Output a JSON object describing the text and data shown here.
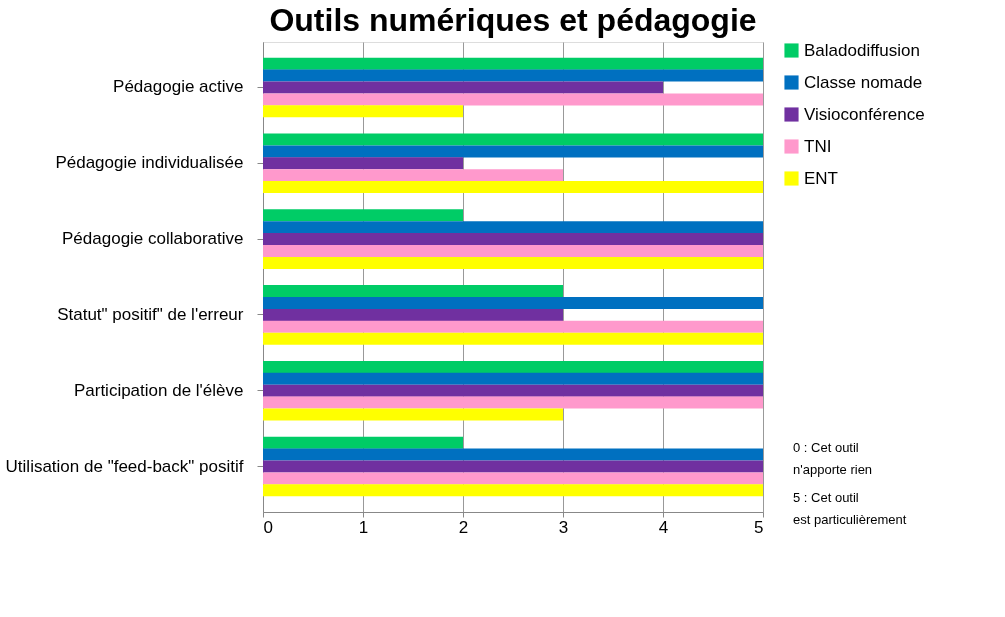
{
  "chart_data": {
    "type": "bar",
    "orientation": "horizontal",
    "title": "Outils numériques et pédagogie",
    "categories": [
      "Pédagogie active",
      "Pédagogie individualisée",
      "Pédagogie collaborative",
      "Statut\" positif\" de l'erreur",
      "Participation de l'élève",
      "Utilisation de \"feed-back\" positif"
    ],
    "series": [
      {
        "name": "Baladodiffusion",
        "color": "#00cc66",
        "values": [
          5,
          5,
          2,
          3,
          5,
          2
        ]
      },
      {
        "name": "Classe nomade",
        "color": "#0070c0",
        "values": [
          5,
          5,
          5,
          5,
          5,
          5
        ]
      },
      {
        "name": "Visioconférence",
        "color": "#7030a0",
        "values": [
          4,
          2,
          5,
          3,
          5,
          5
        ]
      },
      {
        "name": "TNI",
        "color": "#ff99cc",
        "values": [
          5,
          3,
          5,
          5,
          5,
          5
        ]
      },
      {
        "name": "ENT",
        "color": "#ffff00",
        "values": [
          2,
          5,
          5,
          5,
          3,
          5
        ]
      }
    ],
    "xlim": [
      0,
      5
    ],
    "xticks": [
      0,
      1,
      2,
      3,
      4,
      5
    ],
    "grid": "x",
    "legend": "right",
    "annotations": [
      "0 : Cet outil n'apporte rien",
      "5 : Cet outil est particulièrement"
    ]
  }
}
